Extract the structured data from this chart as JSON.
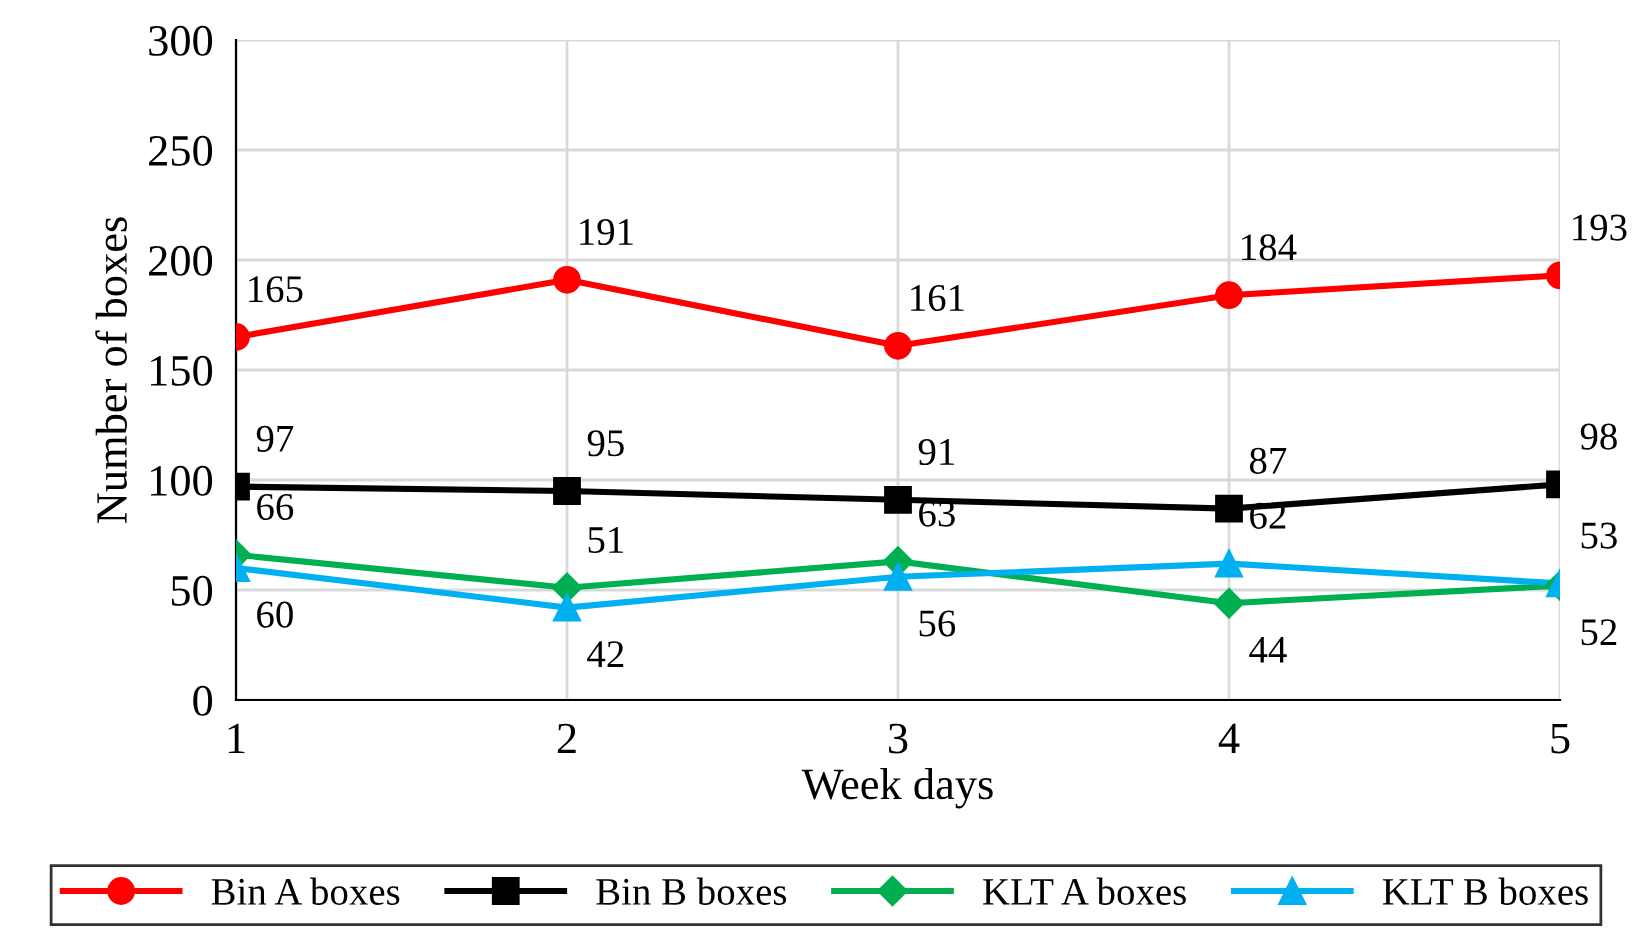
{
  "chart_data": {
    "type": "line",
    "xlabel": "Week days",
    "ylabel": "Number of boxes",
    "x": [
      1,
      2,
      3,
      4,
      5
    ],
    "xlim": [
      1,
      5
    ],
    "xticks": [
      1,
      2,
      3,
      4,
      5
    ],
    "ylim": [
      0,
      300
    ],
    "yticks": [
      0,
      50,
      100,
      150,
      200,
      250,
      300
    ],
    "series": [
      {
        "name": "Bin A boxes",
        "color": "#ff0000",
        "marker": "circle",
        "values": [
          165,
          191,
          161,
          184,
          193
        ]
      },
      {
        "name": "Bin B boxes",
        "color": "#000000",
        "marker": "square",
        "values": [
          97,
          95,
          91,
          87,
          98
        ]
      },
      {
        "name": "KLT A boxes",
        "color": "#00b050",
        "marker": "diamond",
        "values": [
          66,
          51,
          63,
          44,
          52
        ]
      },
      {
        "name": "KLT B boxes",
        "color": "#00b0f0",
        "marker": "triangle",
        "values": [
          60,
          42,
          56,
          62,
          53
        ]
      }
    ],
    "data_labels": true,
    "grid": true,
    "legend": "bottom",
    "line_style": "solid"
  }
}
